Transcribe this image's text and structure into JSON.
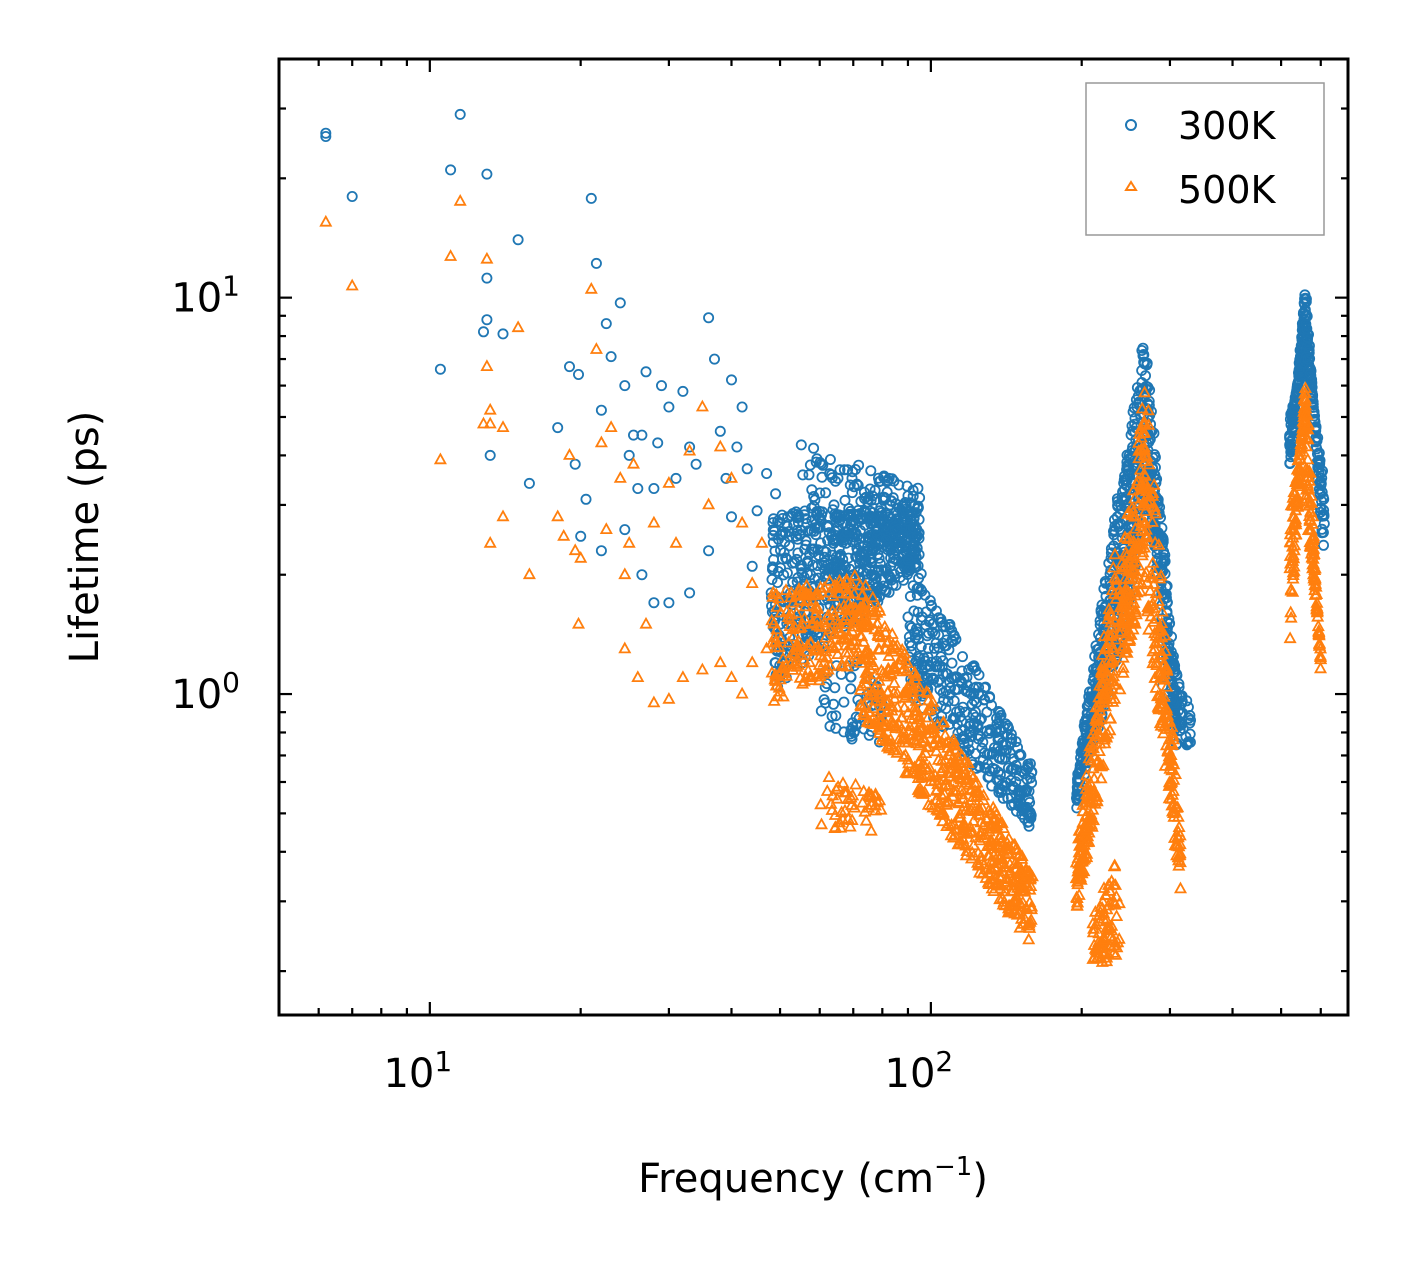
{
  "chart_data": {
    "type": "scatter",
    "title": "",
    "xlabel": "Frequency (cm",
    "xlabel_sup": "−1",
    "xlabel_end": ")",
    "ylabel": "Lifetime (ps)",
    "xscale": "log",
    "yscale": "log",
    "xlim": [
      5.0,
      680
    ],
    "ylim": [
      0.155,
      40
    ],
    "x_ticks": [
      {
        "value": 10,
        "base": "10",
        "exp": "1"
      },
      {
        "value": 100,
        "base": "10",
        "exp": "2"
      }
    ],
    "y_ticks": [
      {
        "value": 1,
        "base": "10",
        "exp": "0"
      },
      {
        "value": 10,
        "base": "10",
        "exp": "1"
      }
    ],
    "legend": {
      "position": "top-right"
    },
    "series": [
      {
        "name": "300K",
        "marker": "circle",
        "color": "#1f77b4",
        "scattered_points": [
          [
            6.2,
            26.0
          ],
          [
            6.2,
            25.5
          ],
          [
            7.0,
            18.0
          ],
          [
            11.0,
            21.0
          ],
          [
            11.5,
            29.0
          ],
          [
            13.0,
            20.5
          ],
          [
            13.0,
            11.2
          ],
          [
            13.0,
            8.8
          ],
          [
            12.8,
            8.2
          ],
          [
            10.5,
            6.6
          ],
          [
            13.2,
            4.0
          ],
          [
            14.0,
            8.1
          ],
          [
            15.0,
            14.0
          ],
          [
            15.8,
            3.4
          ],
          [
            18.0,
            4.7
          ],
          [
            19.0,
            6.7
          ],
          [
            19.5,
            3.8
          ],
          [
            19.8,
            6.4
          ],
          [
            20.0,
            2.5
          ],
          [
            20.5,
            3.1
          ],
          [
            21.0,
            17.8
          ],
          [
            21.5,
            12.2
          ],
          [
            22.0,
            5.2
          ],
          [
            22.5,
            8.6
          ],
          [
            23.0,
            7.1
          ],
          [
            24.0,
            9.7
          ],
          [
            24.5,
            6.0
          ],
          [
            25.0,
            4.0
          ],
          [
            25.5,
            4.5
          ],
          [
            26.0,
            3.3
          ],
          [
            26.5,
            4.5
          ],
          [
            27.0,
            6.5
          ],
          [
            28.0,
            3.3
          ],
          [
            28.5,
            4.3
          ],
          [
            29.0,
            6.0
          ],
          [
            30.0,
            5.3
          ],
          [
            31.0,
            3.5
          ],
          [
            32.0,
            5.8
          ],
          [
            33.0,
            4.2
          ],
          [
            34.0,
            3.8
          ],
          [
            36.0,
            8.9
          ],
          [
            37.0,
            7.0
          ],
          [
            38.0,
            4.6
          ],
          [
            39.0,
            3.5
          ],
          [
            40.0,
            6.2
          ],
          [
            41.0,
            4.2
          ],
          [
            42.0,
            5.3
          ],
          [
            43.0,
            3.7
          ],
          [
            45.0,
            2.9
          ],
          [
            47.0,
            3.6
          ],
          [
            49.0,
            3.2
          ],
          [
            22.0,
            2.3
          ],
          [
            24.5,
            2.6
          ],
          [
            26.5,
            2.0
          ],
          [
            28.0,
            1.7
          ],
          [
            30.0,
            1.7
          ],
          [
            33.0,
            1.8
          ],
          [
            36.0,
            2.3
          ],
          [
            40.0,
            2.8
          ],
          [
            44.0,
            2.1
          ],
          [
            48.0,
            1.8
          ]
        ],
        "bands": [
          {
            "x": [
              48,
              95
            ],
            "y_start": [
              2.9,
              2.9
            ],
            "y_end": [
              1.0,
              2.1
            ],
            "count": 650
          },
          {
            "x": [
              55,
              95
            ],
            "y_start": [
              4.3,
              3.3
            ],
            "y_end": [
              2.4,
              2.4
            ],
            "count": 150
          },
          {
            "x": [
              90,
              160
            ],
            "y_start": [
              2.3,
              0.65
            ],
            "y_end": [
              1.0,
              0.45
            ],
            "count": 380
          },
          {
            "x": [
              60,
              80
            ],
            "y_start": [
              1.4,
              1.1
            ],
            "y_end": [
              0.85,
              0.7
            ],
            "count": 60
          },
          {
            "x": [
              195,
              238
            ],
            "y_start": [
              0.5,
              1.3
            ],
            "y_end": [
              0.6,
              3.5
            ],
            "count": 260
          },
          {
            "x": [
              238,
              268
            ],
            "y_start": [
              1.2,
              3.0
            ],
            "y_end": [
              3.0,
              8.5
            ],
            "count": 200
          },
          {
            "x": [
              268,
              310
            ],
            "y_start": [
              8.0,
              1.0
            ],
            "y_end": [
              3.5,
              0.7
            ],
            "count": 220
          },
          {
            "x": [
              290,
              330
            ],
            "y_start": [
              1.5,
              0.9
            ],
            "y_end": [
              1.0,
              0.7
            ],
            "count": 60
          },
          {
            "x": [
              520,
              560
            ],
            "y_start": [
              3.5,
              11.0
            ],
            "y_end": [
              5.0,
              7.0
            ],
            "count": 150
          },
          {
            "x": [
              560,
              610
            ],
            "y_start": [
              10.5,
              2.0
            ],
            "y_end": [
              7.0,
              3.5
            ],
            "count": 130
          }
        ]
      },
      {
        "name": "500K",
        "marker": "triangle",
        "color": "#ff7f0e",
        "scattered_points": [
          [
            6.2,
            15.5
          ],
          [
            7.0,
            10.7
          ],
          [
            10.5,
            3.9
          ],
          [
            11.0,
            12.7
          ],
          [
            11.5,
            17.5
          ],
          [
            12.8,
            4.8
          ],
          [
            13.0,
            12.5
          ],
          [
            13.0,
            6.7
          ],
          [
            13.2,
            5.2
          ],
          [
            13.2,
            4.8
          ],
          [
            13.2,
            2.4
          ],
          [
            14.0,
            4.7
          ],
          [
            14.0,
            2.8
          ],
          [
            15.0,
            8.4
          ],
          [
            15.8,
            2.0
          ],
          [
            18.0,
            2.8
          ],
          [
            18.5,
            2.5
          ],
          [
            19.0,
            4.0
          ],
          [
            19.5,
            2.3
          ],
          [
            19.8,
            1.5
          ],
          [
            20.0,
            2.2
          ],
          [
            21.0,
            10.5
          ],
          [
            21.5,
            7.4
          ],
          [
            22.0,
            4.3
          ],
          [
            22.5,
            2.6
          ],
          [
            23.0,
            4.7
          ],
          [
            24.0,
            3.5
          ],
          [
            24.5,
            2.0
          ],
          [
            25.0,
            2.4
          ],
          [
            25.5,
            3.8
          ],
          [
            27.0,
            1.5
          ],
          [
            28.0,
            2.7
          ],
          [
            30.0,
            3.4
          ],
          [
            31.0,
            2.4
          ],
          [
            33.0,
            4.1
          ],
          [
            35.0,
            5.3
          ],
          [
            36.0,
            3.0
          ],
          [
            38.0,
            4.2
          ],
          [
            40.0,
            3.5
          ],
          [
            42.0,
            2.7
          ],
          [
            44.0,
            1.9
          ],
          [
            46.0,
            2.4
          ],
          [
            24.5,
            1.3
          ],
          [
            26.0,
            1.1
          ],
          [
            28.0,
            0.95
          ],
          [
            30.0,
            0.97
          ],
          [
            32.0,
            1.1
          ],
          [
            35.0,
            1.15
          ],
          [
            38.0,
            1.2
          ],
          [
            40.0,
            1.1
          ],
          [
            42.0,
            1.0
          ],
          [
            44.0,
            1.2
          ],
          [
            47.0,
            1.3
          ]
        ],
        "bands": [
          {
            "x": [
              48,
              72
            ],
            "y_start": [
              1.8,
              2.0
            ],
            "y_end": [
              0.95,
              1.2
            ],
            "count": 220
          },
          {
            "x": [
              72,
              160
            ],
            "y_start": [
              2.0,
              0.35
            ],
            "y_end": [
              0.9,
              0.23
            ],
            "count": 650
          },
          {
            "x": [
              60,
              80
            ],
            "y_start": [
              0.65,
              0.55
            ],
            "y_end": [
              0.45,
              0.45
            ],
            "count": 50
          },
          {
            "x": [
              195,
              235
            ],
            "y_start": [
              0.27,
              1.0
            ],
            "y_end": [
              0.4,
              2.5
            ],
            "count": 220
          },
          {
            "x": [
              210,
              238
            ],
            "y_start": [
              0.2,
              0.22
            ],
            "y_end": [
              0.28,
              0.4
            ],
            "count": 80
          },
          {
            "x": [
              238,
              270
            ],
            "y_start": [
              1.0,
              2.0
            ],
            "y_end": [
              2.0,
              6.5
            ],
            "count": 170
          },
          {
            "x": [
              270,
              315
            ],
            "y_start": [
              6.0,
              0.45
            ],
            "y_end": [
              1.5,
              0.32
            ],
            "count": 180
          },
          {
            "x": [
              520,
              560
            ],
            "y_start": [
              1.3,
              6.5
            ],
            "y_end": [
              3.0,
              5.0
            ],
            "count": 120
          },
          {
            "x": [
              560,
              600
            ],
            "y_start": [
              6.5,
              1.1
            ],
            "y_end": [
              3.0,
              1.3
            ],
            "count": 110
          }
        ]
      }
    ]
  }
}
